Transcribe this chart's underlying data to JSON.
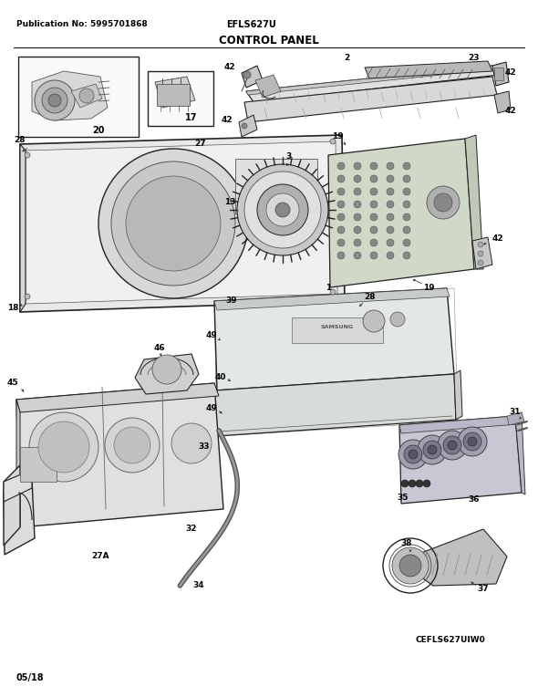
{
  "page_width": 5.9,
  "page_height": 7.64,
  "dpi": 100,
  "bg_color": "#ffffff",
  "pub_no_text": "Publication No: 5995701868",
  "model_text": "EFLS627U",
  "title_text": "CONTROL PANEL",
  "footer_code": "CEFLS627UIW0",
  "date_text": "05/18",
  "text_color": "#000000",
  "draw_color": "#222222",
  "light_gray": "#cccccc",
  "mid_gray": "#999999",
  "dark_gray": "#555555"
}
